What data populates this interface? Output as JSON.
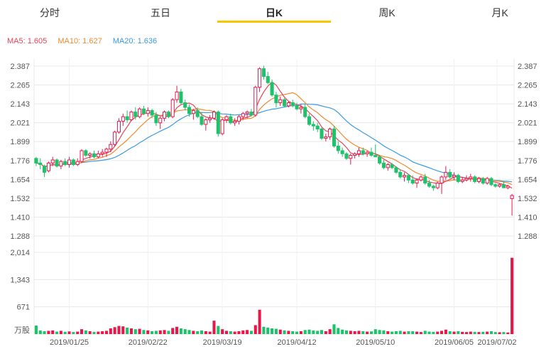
{
  "tabs": [
    "分时",
    "五日",
    "日K",
    "周K",
    "月K"
  ],
  "active_tab": "日K",
  "legend": {
    "ma5": "MA5: 1.605",
    "ma10": "MA10: 1.627",
    "ma20": "MA20: 1.636"
  },
  "colors": {
    "up": "#e8174a",
    "down": "#1ec26b",
    "ma5": "#e8435a",
    "ma10": "#ef8a2f",
    "ma20": "#3a9be0",
    "grid": "#e8e8e8",
    "tab_underline": "#f5c800"
  },
  "chart_data": {
    "type": "candlestick",
    "price_ticks": [
      "2.387",
      "2.265",
      "2.143",
      "2.021",
      "1.899",
      "1.776",
      "1.654",
      "1.532",
      "1.410",
      "1.288"
    ],
    "volume_ticks": [
      "2,014",
      "1,343",
      "671",
      "万股"
    ],
    "date_ticks": [
      "2019/01/25",
      "2019/02/22",
      "2019/03/19",
      "2019/04/12",
      "2019/05/10",
      "2019/06/05",
      "2019/07/02"
    ],
    "ylim": [
      1.288,
      2.387
    ],
    "volume_max": 2014,
    "candles": [
      [
        1.79,
        1.8,
        1.74,
        1.76,
        210
      ],
      [
        1.76,
        1.79,
        1.72,
        1.75,
        90
      ],
      [
        1.74,
        1.75,
        1.67,
        1.7,
        70
      ],
      [
        1.71,
        1.77,
        1.7,
        1.76,
        80
      ],
      [
        1.76,
        1.8,
        1.74,
        1.78,
        90
      ],
      [
        1.78,
        1.79,
        1.73,
        1.74,
        60
      ],
      [
        1.74,
        1.78,
        1.72,
        1.77,
        80
      ],
      [
        1.77,
        1.79,
        1.74,
        1.75,
        55
      ],
      [
        1.75,
        1.8,
        1.73,
        1.78,
        65
      ],
      [
        1.78,
        1.79,
        1.74,
        1.75,
        50
      ],
      [
        1.75,
        1.79,
        1.74,
        1.77,
        60
      ],
      [
        1.77,
        1.85,
        1.76,
        1.84,
        120
      ],
      [
        1.84,
        1.85,
        1.8,
        1.81,
        90
      ],
      [
        1.81,
        1.83,
        1.79,
        1.82,
        70
      ],
      [
        1.82,
        1.84,
        1.79,
        1.8,
        55
      ],
      [
        1.8,
        1.84,
        1.79,
        1.82,
        60
      ],
      [
        1.82,
        1.85,
        1.8,
        1.83,
        70
      ],
      [
        1.83,
        1.86,
        1.8,
        1.85,
        80
      ],
      [
        1.85,
        1.9,
        1.83,
        1.88,
        140
      ],
      [
        1.88,
        1.97,
        1.87,
        1.96,
        170
      ],
      [
        1.96,
        2.05,
        1.95,
        2.03,
        200
      ],
      [
        2.03,
        2.08,
        2.0,
        2.06,
        190
      ],
      [
        2.06,
        2.1,
        2.02,
        2.04,
        160
      ],
      [
        2.04,
        2.1,
        2.03,
        2.09,
        140
      ],
      [
        2.09,
        2.12,
        2.04,
        2.06,
        120
      ],
      [
        2.06,
        2.12,
        2.05,
        2.11,
        130
      ],
      [
        2.11,
        2.13,
        2.07,
        2.08,
        100
      ],
      [
        2.08,
        2.12,
        2.06,
        2.1,
        90
      ],
      [
        2.1,
        2.11,
        2.05,
        2.07,
        70
      ],
      [
        2.07,
        2.09,
        2.0,
        2.02,
        80
      ],
      [
        2.02,
        2.06,
        1.98,
        2.05,
        90
      ],
      [
        2.05,
        2.1,
        2.03,
        2.09,
        100
      ],
      [
        2.09,
        2.1,
        2.05,
        2.06,
        80
      ],
      [
        2.06,
        2.18,
        2.05,
        2.17,
        150
      ],
      [
        2.17,
        2.26,
        2.15,
        2.22,
        180
      ],
      [
        2.22,
        2.24,
        2.14,
        2.15,
        140
      ],
      [
        2.15,
        2.17,
        2.1,
        2.12,
        120
      ],
      [
        2.12,
        2.14,
        2.06,
        2.08,
        100
      ],
      [
        2.08,
        2.11,
        2.04,
        2.1,
        80
      ],
      [
        2.1,
        2.12,
        2.05,
        2.06,
        70
      ],
      [
        2.06,
        2.09,
        2.0,
        2.01,
        90
      ],
      [
        2.01,
        2.05,
        1.97,
        2.04,
        70
      ],
      [
        2.04,
        2.07,
        2.02,
        2.05,
        60
      ],
      [
        2.05,
        2.1,
        2.04,
        2.09,
        330
      ],
      [
        2.09,
        2.1,
        1.93,
        1.95,
        200
      ],
      [
        1.95,
        2.05,
        1.94,
        2.04,
        120
      ],
      [
        2.04,
        2.07,
        2.02,
        2.06,
        80
      ],
      [
        2.06,
        2.08,
        2.01,
        2.02,
        70
      ],
      [
        2.02,
        2.05,
        2.0,
        2.03,
        60
      ],
      [
        2.03,
        2.07,
        2.01,
        2.06,
        70
      ],
      [
        2.06,
        2.09,
        2.04,
        2.08,
        90
      ],
      [
        2.08,
        2.1,
        2.05,
        2.09,
        100
      ],
      [
        2.09,
        2.11,
        2.06,
        2.07,
        80
      ],
      [
        2.07,
        2.26,
        2.06,
        2.25,
        220
      ],
      [
        2.25,
        2.38,
        2.22,
        2.37,
        600
      ],
      [
        2.37,
        2.39,
        2.3,
        2.32,
        180
      ],
      [
        2.32,
        2.35,
        2.27,
        2.28,
        160
      ],
      [
        2.28,
        2.3,
        2.19,
        2.2,
        140
      ],
      [
        2.2,
        2.22,
        2.12,
        2.15,
        130
      ],
      [
        2.15,
        2.19,
        2.13,
        2.17,
        110
      ],
      [
        2.17,
        2.18,
        2.12,
        2.13,
        90
      ],
      [
        2.13,
        2.16,
        2.12,
        2.15,
        80
      ],
      [
        2.15,
        2.17,
        2.12,
        2.13,
        70
      ],
      [
        2.13,
        2.15,
        2.1,
        2.11,
        60
      ],
      [
        2.11,
        2.14,
        2.08,
        2.12,
        70
      ],
      [
        2.12,
        2.14,
        2.05,
        2.06,
        100
      ],
      [
        2.06,
        2.08,
        2.0,
        2.01,
        110
      ],
      [
        2.01,
        2.03,
        1.97,
        2.0,
        90
      ],
      [
        2.0,
        2.02,
        1.96,
        1.98,
        80
      ],
      [
        1.98,
        1.99,
        1.91,
        1.92,
        100
      ],
      [
        1.92,
        1.95,
        1.9,
        1.93,
        70
      ],
      [
        1.93,
        1.99,
        1.91,
        1.98,
        120
      ],
      [
        1.98,
        2.0,
        1.86,
        1.87,
        240
      ],
      [
        1.87,
        1.9,
        1.82,
        1.84,
        150
      ],
      [
        1.84,
        1.86,
        1.8,
        1.82,
        110
      ],
      [
        1.82,
        1.83,
        1.78,
        1.79,
        90
      ],
      [
        1.79,
        1.82,
        1.75,
        1.81,
        80
      ],
      [
        1.81,
        1.83,
        1.79,
        1.82,
        70
      ],
      [
        1.82,
        1.86,
        1.8,
        1.84,
        80
      ],
      [
        1.84,
        1.86,
        1.81,
        1.82,
        70
      ],
      [
        1.82,
        1.84,
        1.8,
        1.83,
        60
      ],
      [
        1.83,
        1.86,
        1.8,
        1.81,
        65
      ],
      [
        1.81,
        1.88,
        1.8,
        1.8,
        120
      ],
      [
        1.8,
        1.81,
        1.75,
        1.76,
        100
      ],
      [
        1.76,
        1.78,
        1.72,
        1.73,
        90
      ],
      [
        1.73,
        1.76,
        1.71,
        1.75,
        70
      ],
      [
        1.75,
        1.76,
        1.72,
        1.73,
        60
      ],
      [
        1.73,
        1.74,
        1.69,
        1.7,
        70
      ],
      [
        1.7,
        1.72,
        1.66,
        1.67,
        80
      ],
      [
        1.67,
        1.7,
        1.64,
        1.68,
        60
      ],
      [
        1.68,
        1.69,
        1.63,
        1.65,
        70
      ],
      [
        1.65,
        1.68,
        1.62,
        1.63,
        70
      ],
      [
        1.63,
        1.66,
        1.6,
        1.65,
        60
      ],
      [
        1.65,
        1.68,
        1.64,
        1.67,
        50
      ],
      [
        1.67,
        1.69,
        1.62,
        1.63,
        80
      ],
      [
        1.63,
        1.65,
        1.6,
        1.61,
        60
      ],
      [
        1.61,
        1.62,
        1.58,
        1.6,
        55
      ],
      [
        1.6,
        1.64,
        1.59,
        1.63,
        60
      ],
      [
        1.63,
        1.68,
        1.56,
        1.67,
        80
      ],
      [
        1.67,
        1.74,
        1.65,
        1.7,
        110
      ],
      [
        1.7,
        1.72,
        1.66,
        1.67,
        70
      ],
      [
        1.67,
        1.7,
        1.65,
        1.68,
        60
      ],
      [
        1.68,
        1.69,
        1.63,
        1.64,
        70
      ],
      [
        1.64,
        1.67,
        1.63,
        1.65,
        55
      ],
      [
        1.65,
        1.68,
        1.64,
        1.66,
        50
      ],
      [
        1.66,
        1.69,
        1.64,
        1.67,
        60
      ],
      [
        1.67,
        1.68,
        1.63,
        1.64,
        55
      ],
      [
        1.64,
        1.67,
        1.63,
        1.66,
        50
      ],
      [
        1.66,
        1.67,
        1.62,
        1.63,
        55
      ],
      [
        1.63,
        1.67,
        1.62,
        1.66,
        60
      ],
      [
        1.66,
        1.67,
        1.61,
        1.62,
        70
      ],
      [
        1.62,
        1.63,
        1.6,
        1.61,
        50
      ],
      [
        1.61,
        1.63,
        1.6,
        1.62,
        45
      ],
      [
        1.62,
        1.64,
        1.6,
        1.6,
        50
      ],
      [
        1.6,
        1.62,
        1.59,
        1.61,
        40
      ],
      [
        1.53,
        1.56,
        1.42,
        1.55,
        1880
      ]
    ]
  }
}
